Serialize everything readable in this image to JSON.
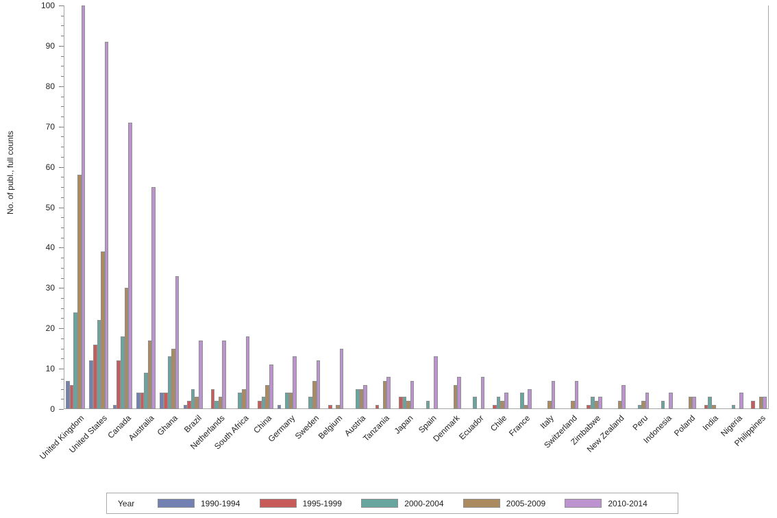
{
  "chart_data": {
    "type": "bar",
    "title": "",
    "xlabel": "",
    "ylabel": "No. of publ., full counts",
    "ylim": [
      0,
      100
    ],
    "ytick_major": 10,
    "ytick_minor": 2.5,
    "grid": false,
    "legend_title": "Year",
    "legend_position": "bottom",
    "axis_color": "#a6a6a6",
    "bar_outline_color": "#8f8f8f",
    "categories": [
      "United Kingdom",
      "United States",
      "Canada",
      "Australia",
      "Ghana",
      "Brazil",
      "Netherlands",
      "South Africa",
      "China",
      "Germany",
      "Sweden",
      "Belgium",
      "Austria",
      "Tanzania",
      "Japan",
      "Spain",
      "Denmark",
      "Ecuador",
      "Chile",
      "France",
      "Italy",
      "Switzerland",
      "Zimbabwe",
      "New Zealand",
      "Peru",
      "Indonesia",
      "Poland",
      "India",
      "Nigeria",
      "Philippines"
    ],
    "series": [
      {
        "name": "1990-1994",
        "color": "#7380B2",
        "values": [
          7,
          12,
          1,
          4,
          4,
          1,
          0,
          0,
          0,
          1,
          0,
          0,
          0,
          0,
          0,
          0,
          0,
          0,
          0,
          0,
          0,
          0,
          0,
          0,
          0,
          0,
          0,
          0,
          0,
          0
        ]
      },
      {
        "name": "1995-1999",
        "color": "#C95A5A",
        "values": [
          6,
          16,
          12,
          4,
          4,
          2,
          5,
          0,
          2,
          0,
          0,
          1,
          0,
          1,
          3,
          0,
          0,
          0,
          1,
          0,
          0,
          0,
          1,
          0,
          0,
          0,
          0,
          1,
          0,
          2
        ]
      },
      {
        "name": "2000-2004",
        "color": "#68A59E",
        "values": [
          24,
          22,
          18,
          9,
          13,
          5,
          2,
          4,
          3,
          4,
          3,
          0,
          5,
          0,
          3,
          2,
          0,
          3,
          3,
          4,
          0,
          0,
          3,
          0,
          1,
          2,
          0,
          3,
          1,
          0
        ]
      },
      {
        "name": "2005-2009",
        "color": "#AA8A5E",
        "values": [
          58,
          39,
          30,
          17,
          15,
          3,
          3,
          5,
          6,
          4,
          7,
          1,
          5,
          7,
          2,
          0,
          6,
          0,
          2,
          1,
          2,
          2,
          2,
          2,
          2,
          0,
          3,
          1,
          0,
          3
        ]
      },
      {
        "name": "2010-2014",
        "color": "#BC92CF",
        "values": [
          100,
          91,
          71,
          55,
          33,
          17,
          17,
          18,
          11,
          13,
          12,
          15,
          6,
          8,
          7,
          13,
          8,
          8,
          4,
          5,
          7,
          7,
          3,
          6,
          4,
          4,
          3,
          0,
          4,
          3
        ]
      }
    ]
  }
}
